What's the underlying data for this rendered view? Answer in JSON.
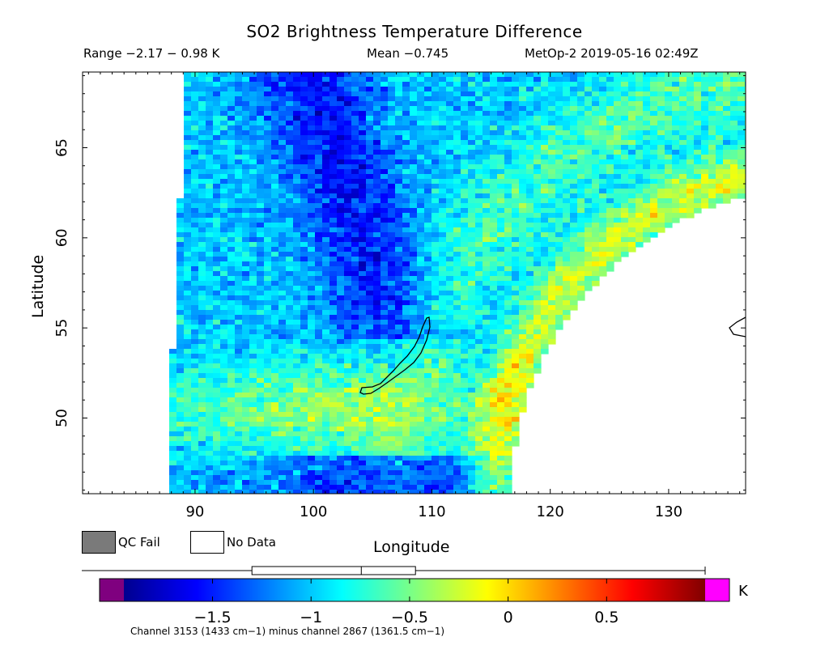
{
  "chart_data": {
    "type": "heatmap",
    "title": "SO2 Brightness Temperature Difference",
    "range_text": "Range −2.17 − 0.98 K",
    "mean_text": "Mean −0.745",
    "satellite_text": "MetOp-2 2019-05-16 02:49Z",
    "xlabel": "Longitude",
    "ylabel": "Latitude",
    "xlim": [
      80.5,
      136.5
    ],
    "ylim": [
      45.8,
      69.2
    ],
    "x_ticks": [
      90,
      100,
      110,
      120,
      130
    ],
    "y_ticks": [
      50,
      55,
      60,
      65
    ],
    "x_tick_labels": [
      "90",
      "100",
      "110",
      "120",
      "130"
    ],
    "y_tick_labels": [
      "50",
      "55",
      "60",
      "65"
    ],
    "value_range": [
      -2.17,
      0.98
    ],
    "mean": -0.745,
    "colorbar": {
      "unit": "K",
      "range": [
        -1.95,
        1.0
      ],
      "ticks": [
        -1.5,
        -1,
        -0.5,
        0,
        0.5
      ],
      "tick_labels": [
        "−1.5",
        "−1",
        "−0.5",
        "0",
        "0.5"
      ],
      "box_stats": {
        "whisker_low": -2.17,
        "q1": -1.3,
        "median": -0.745,
        "q3": -0.47,
        "whisker_high": 0.98
      },
      "below_color": "#7f007f",
      "above_color": "#ff00ff",
      "colors": [
        "#00008f",
        "#0000ff",
        "#0080ff",
        "#00ffff",
        "#80ff80",
        "#ffff00",
        "#ff8000",
        "#ff0000",
        "#800000"
      ]
    },
    "legend": [
      {
        "label": "QC Fail",
        "color": "#7a7a7a"
      },
      {
        "label": "No Data",
        "color": "#ffffff"
      }
    ],
    "footnote": "Channel 3153 (1433 cm−1) minus channel 2867 (1361.5 cm−1)"
  }
}
